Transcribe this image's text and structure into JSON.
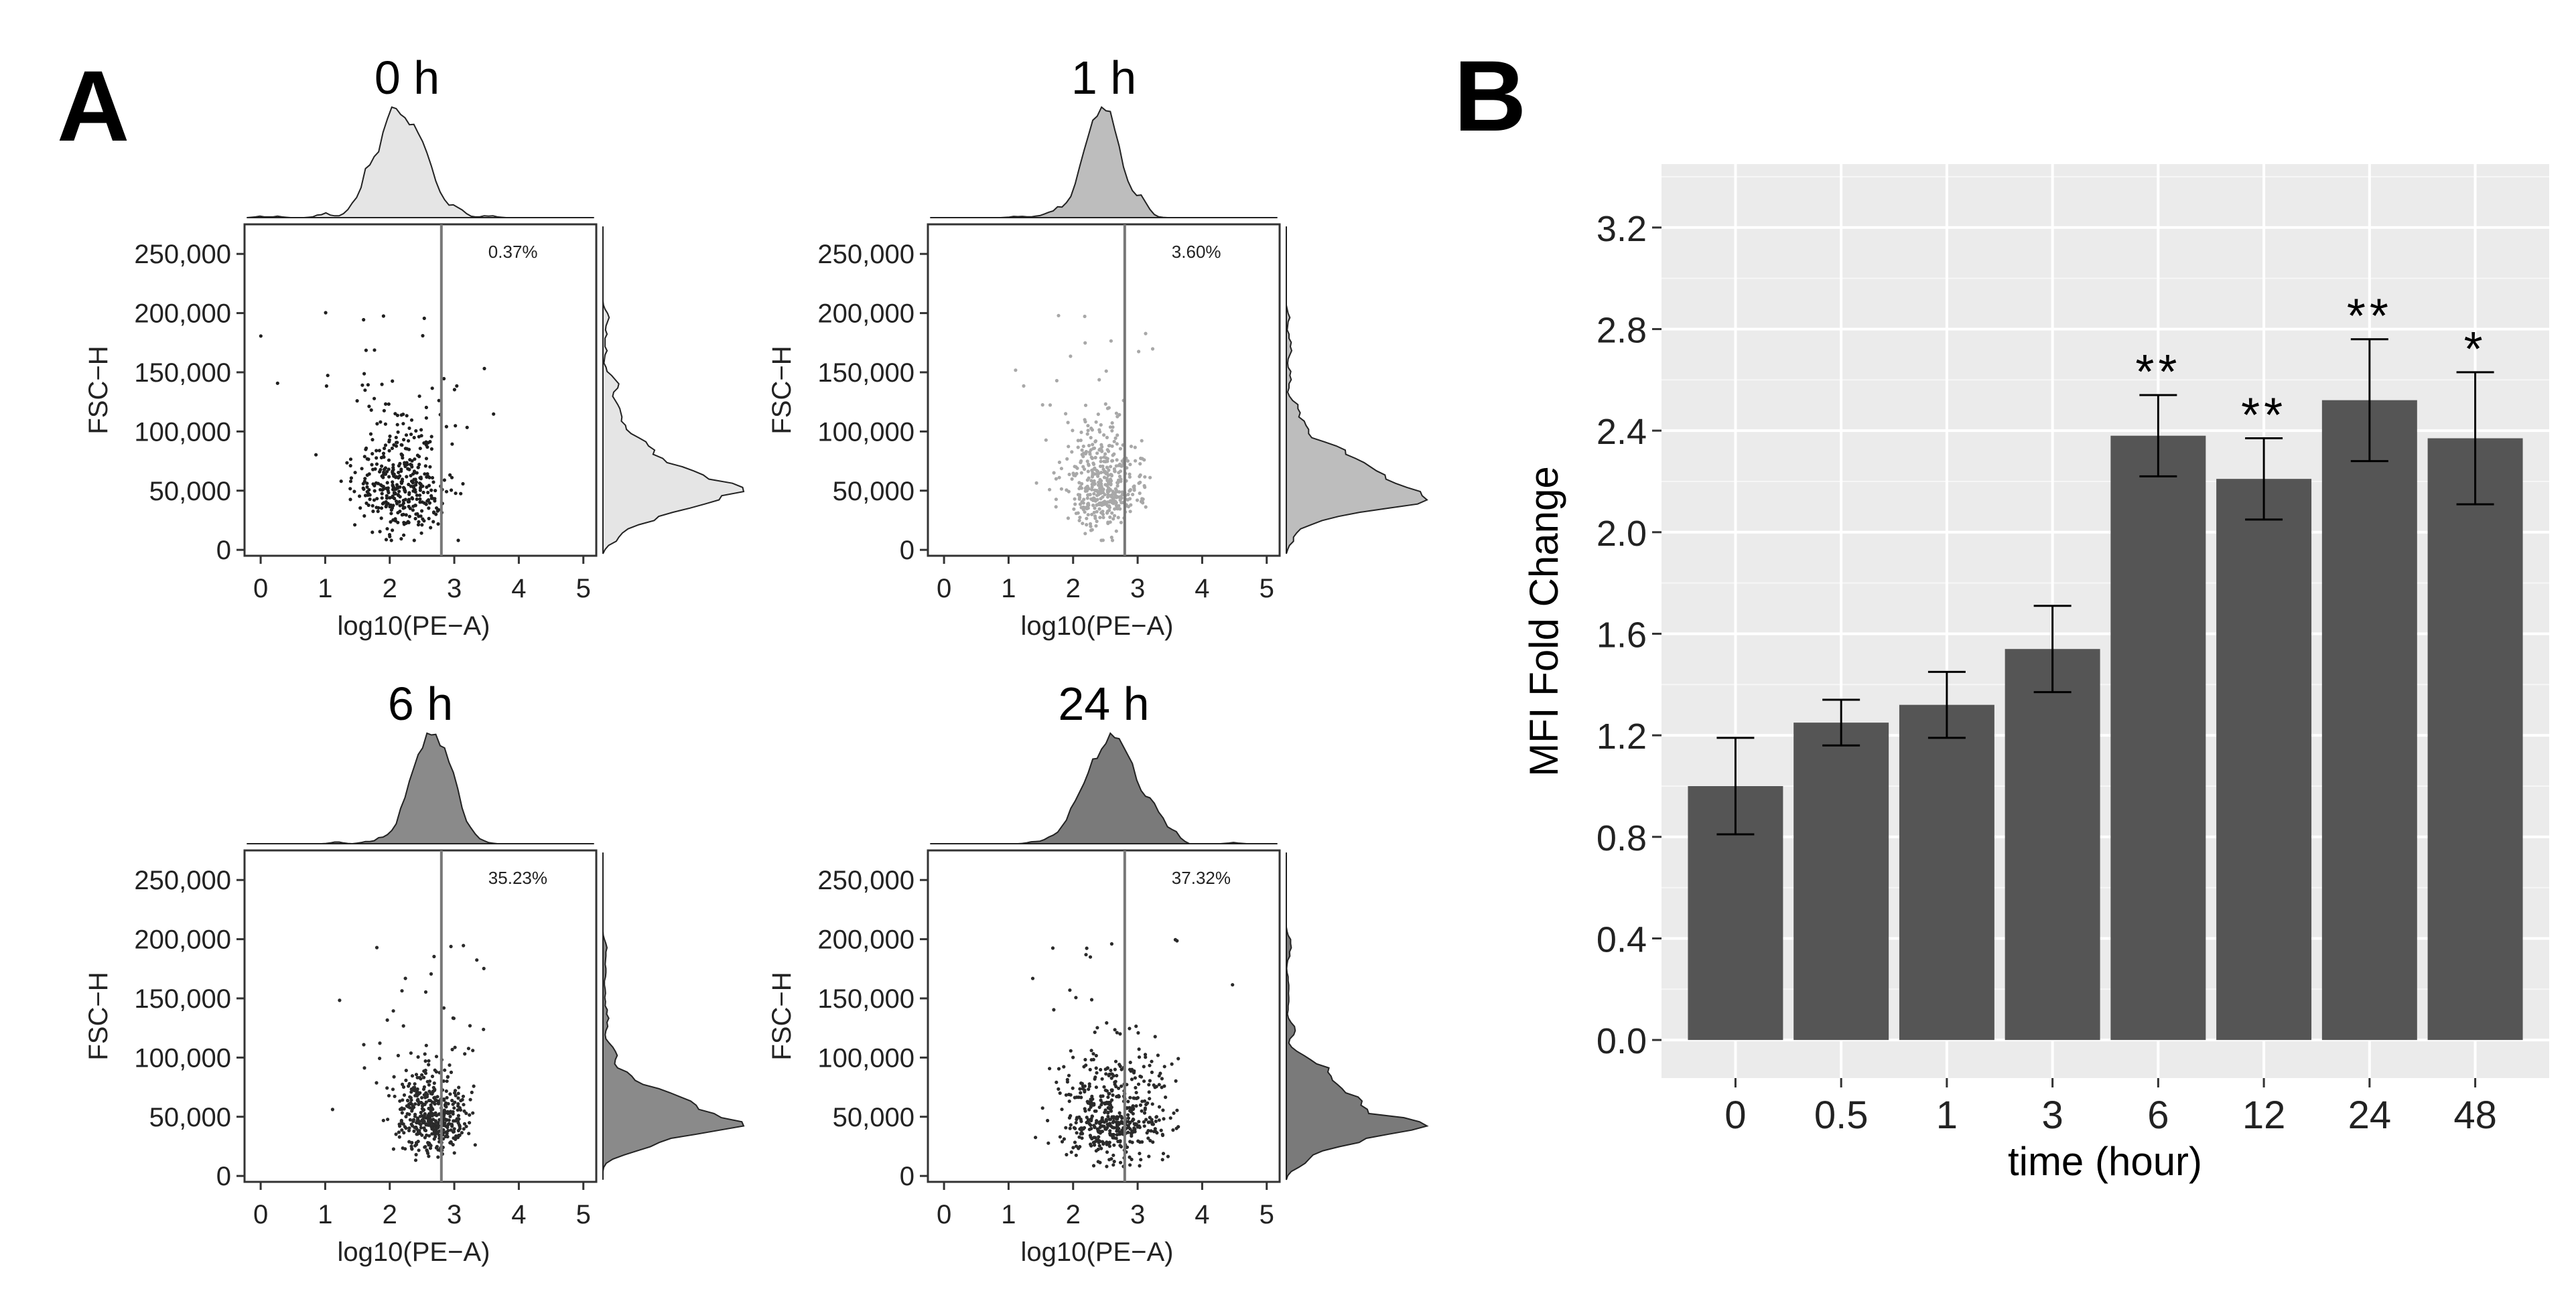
{
  "panel_a": {
    "letter": "A",
    "plots": [
      {
        "title": "0 h",
        "gate_percent": "0.37%",
        "xlabel": "log10(PE−A)",
        "ylabel": "FSC−H",
        "x_ticks": [
          "0",
          "1",
          "2",
          "3",
          "4",
          "5"
        ],
        "y_ticks": [
          "0",
          "50,000",
          "100,000",
          "150,000",
          "200,000",
          "250,000"
        ],
        "gate_x": 2.8,
        "x_range": [
          -0.25,
          5.2
        ],
        "y_range": [
          -5000,
          275000
        ],
        "point_color": "#1f1f1f",
        "hist_fill": "#e5e5e5",
        "cluster": {
          "cx": 2.2,
          "sx": 0.35,
          "cy": 52000,
          "sy": 30000,
          "n": 420,
          "seed": 11
        }
      },
      {
        "title": "1 h",
        "gate_percent": "3.60%",
        "xlabel": "log10(PE−A)",
        "ylabel": "FSC−H",
        "x_ticks": [
          "0",
          "1",
          "2",
          "3",
          "4",
          "5"
        ],
        "y_ticks": [
          "0",
          "50,000",
          "100,000",
          "150,000",
          "200,000",
          "250,000"
        ],
        "gate_x": 2.8,
        "x_range": [
          -0.25,
          5.2
        ],
        "y_range": [
          -5000,
          275000
        ],
        "point_color": "#a8a8a8",
        "hist_fill": "#bdbdbd",
        "cluster": {
          "cx": 2.45,
          "sx": 0.28,
          "cy": 52000,
          "sy": 27000,
          "n": 460,
          "seed": 23
        }
      },
      {
        "title": "6 h",
        "gate_percent": "35.23%",
        "xlabel": "log10(PE−A)",
        "ylabel": "FSC−H",
        "x_ticks": [
          "0",
          "1",
          "2",
          "3",
          "4",
          "5"
        ],
        "y_ticks": [
          "0",
          "50,000",
          "100,000",
          "150,000",
          "200,000",
          "250,000"
        ],
        "gate_x": 2.8,
        "x_range": [
          -0.25,
          5.2
        ],
        "y_range": [
          -5000,
          275000
        ],
        "point_color": "#2a2a2a",
        "hist_fill": "#8a8a8a",
        "cluster": {
          "cx": 2.65,
          "sx": 0.28,
          "cy": 48000,
          "sy": 22000,
          "n": 470,
          "seed": 37
        }
      },
      {
        "title": "24 h",
        "gate_percent": "37.32%",
        "xlabel": "log10(PE−A)",
        "ylabel": "FSC−H",
        "x_ticks": [
          "0",
          "1",
          "2",
          "3",
          "4",
          "5"
        ],
        "y_ticks": [
          "0",
          "50,000",
          "100,000",
          "150,000",
          "200,000",
          "250,000"
        ],
        "gate_x": 2.8,
        "x_range": [
          -0.25,
          5.2
        ],
        "y_range": [
          -5000,
          275000
        ],
        "point_color": "#2a2a2a",
        "hist_fill": "#7a7a7a",
        "cluster": {
          "cx": 2.62,
          "sx": 0.4,
          "cy": 50000,
          "sy": 30000,
          "n": 520,
          "seed": 53
        }
      }
    ]
  },
  "chart_data": {
    "type": "bar",
    "panel_letter": "B",
    "categories": [
      "0",
      "0.5",
      "1",
      "3",
      "6",
      "12",
      "24",
      "48"
    ],
    "values": [
      1.0,
      1.25,
      1.32,
      1.54,
      2.38,
      2.21,
      2.52,
      2.37
    ],
    "error": [
      0.19,
      0.09,
      0.13,
      0.17,
      0.16,
      0.16,
      0.24,
      0.26
    ],
    "significance": [
      "",
      "",
      "",
      "",
      "**",
      "**",
      "**",
      "*"
    ],
    "xlabel": "time (hour)",
    "ylabel": "MFI Fold Change",
    "y_ticks": [
      "0.0",
      "0.4",
      "0.8",
      "1.2",
      "1.6",
      "2.0",
      "2.4",
      "2.8",
      "3.2"
    ],
    "ylim": [
      -0.15,
      3.45
    ],
    "grid": true,
    "bar_color": "#555555",
    "panel_bg": "#ebebeb"
  }
}
